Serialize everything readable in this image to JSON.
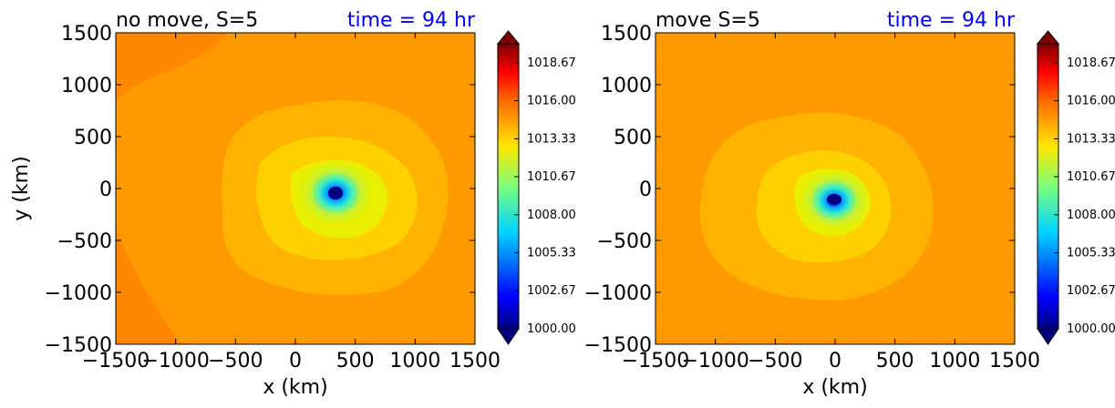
{
  "chart_data": [
    {
      "type": "heatmap",
      "title": "no move, S=5",
      "time_label": "time = 94 hr",
      "xlabel": "x (km)",
      "ylabel": "y (km)",
      "xlim": [
        -1500,
        1500
      ],
      "ylim": [
        -1500,
        1500
      ],
      "xticks": [
        "−1500",
        "−1000",
        "−500",
        "0",
        "500",
        "1000",
        "1500"
      ],
      "yticks": [
        "1500",
        "1000",
        "500",
        "0",
        "−500",
        "−1000",
        "−1500"
      ],
      "low_center_km": [
        330,
        -40
      ],
      "min_value": 1000.0,
      "background_value": 1015.3,
      "colorbar": {
        "range": [
          1000.0,
          1020.0
        ],
        "tick_labels": [
          "1018.67",
          "1016.00",
          "1013.33",
          "1010.67",
          "1008.00",
          "1005.33",
          "1002.67",
          "1000.00"
        ],
        "extend": "both"
      }
    },
    {
      "type": "heatmap",
      "title": "move S=5",
      "time_label": "time = 94 hr",
      "xlabel": "x (km)",
      "ylabel": "",
      "xlim": [
        -1500,
        1500
      ],
      "ylim": [
        -1500,
        1500
      ],
      "xticks": [
        "−1500",
        "−1000",
        "−500",
        "0",
        "500",
        "1000",
        "1500"
      ],
      "yticks": [
        "1500",
        "1000",
        "500",
        "0",
        "−500",
        "−1000",
        "−1500"
      ],
      "low_center_km": [
        0,
        -110
      ],
      "min_value": 1000.0,
      "background_value": 1015.3,
      "colorbar": {
        "range": [
          1000.0,
          1020.0
        ],
        "tick_labels": [
          "1018.67",
          "1016.00",
          "1013.33",
          "1010.67",
          "1008.00",
          "1005.33",
          "1002.67",
          "1000.00"
        ],
        "extend": "both"
      }
    }
  ],
  "colors": {
    "title_time": "#0000ff",
    "background_field": "#ff9900",
    "outer_ring": "#ffb300",
    "inner_ring": "#ffd000",
    "core_yellow": "#e8f000"
  }
}
